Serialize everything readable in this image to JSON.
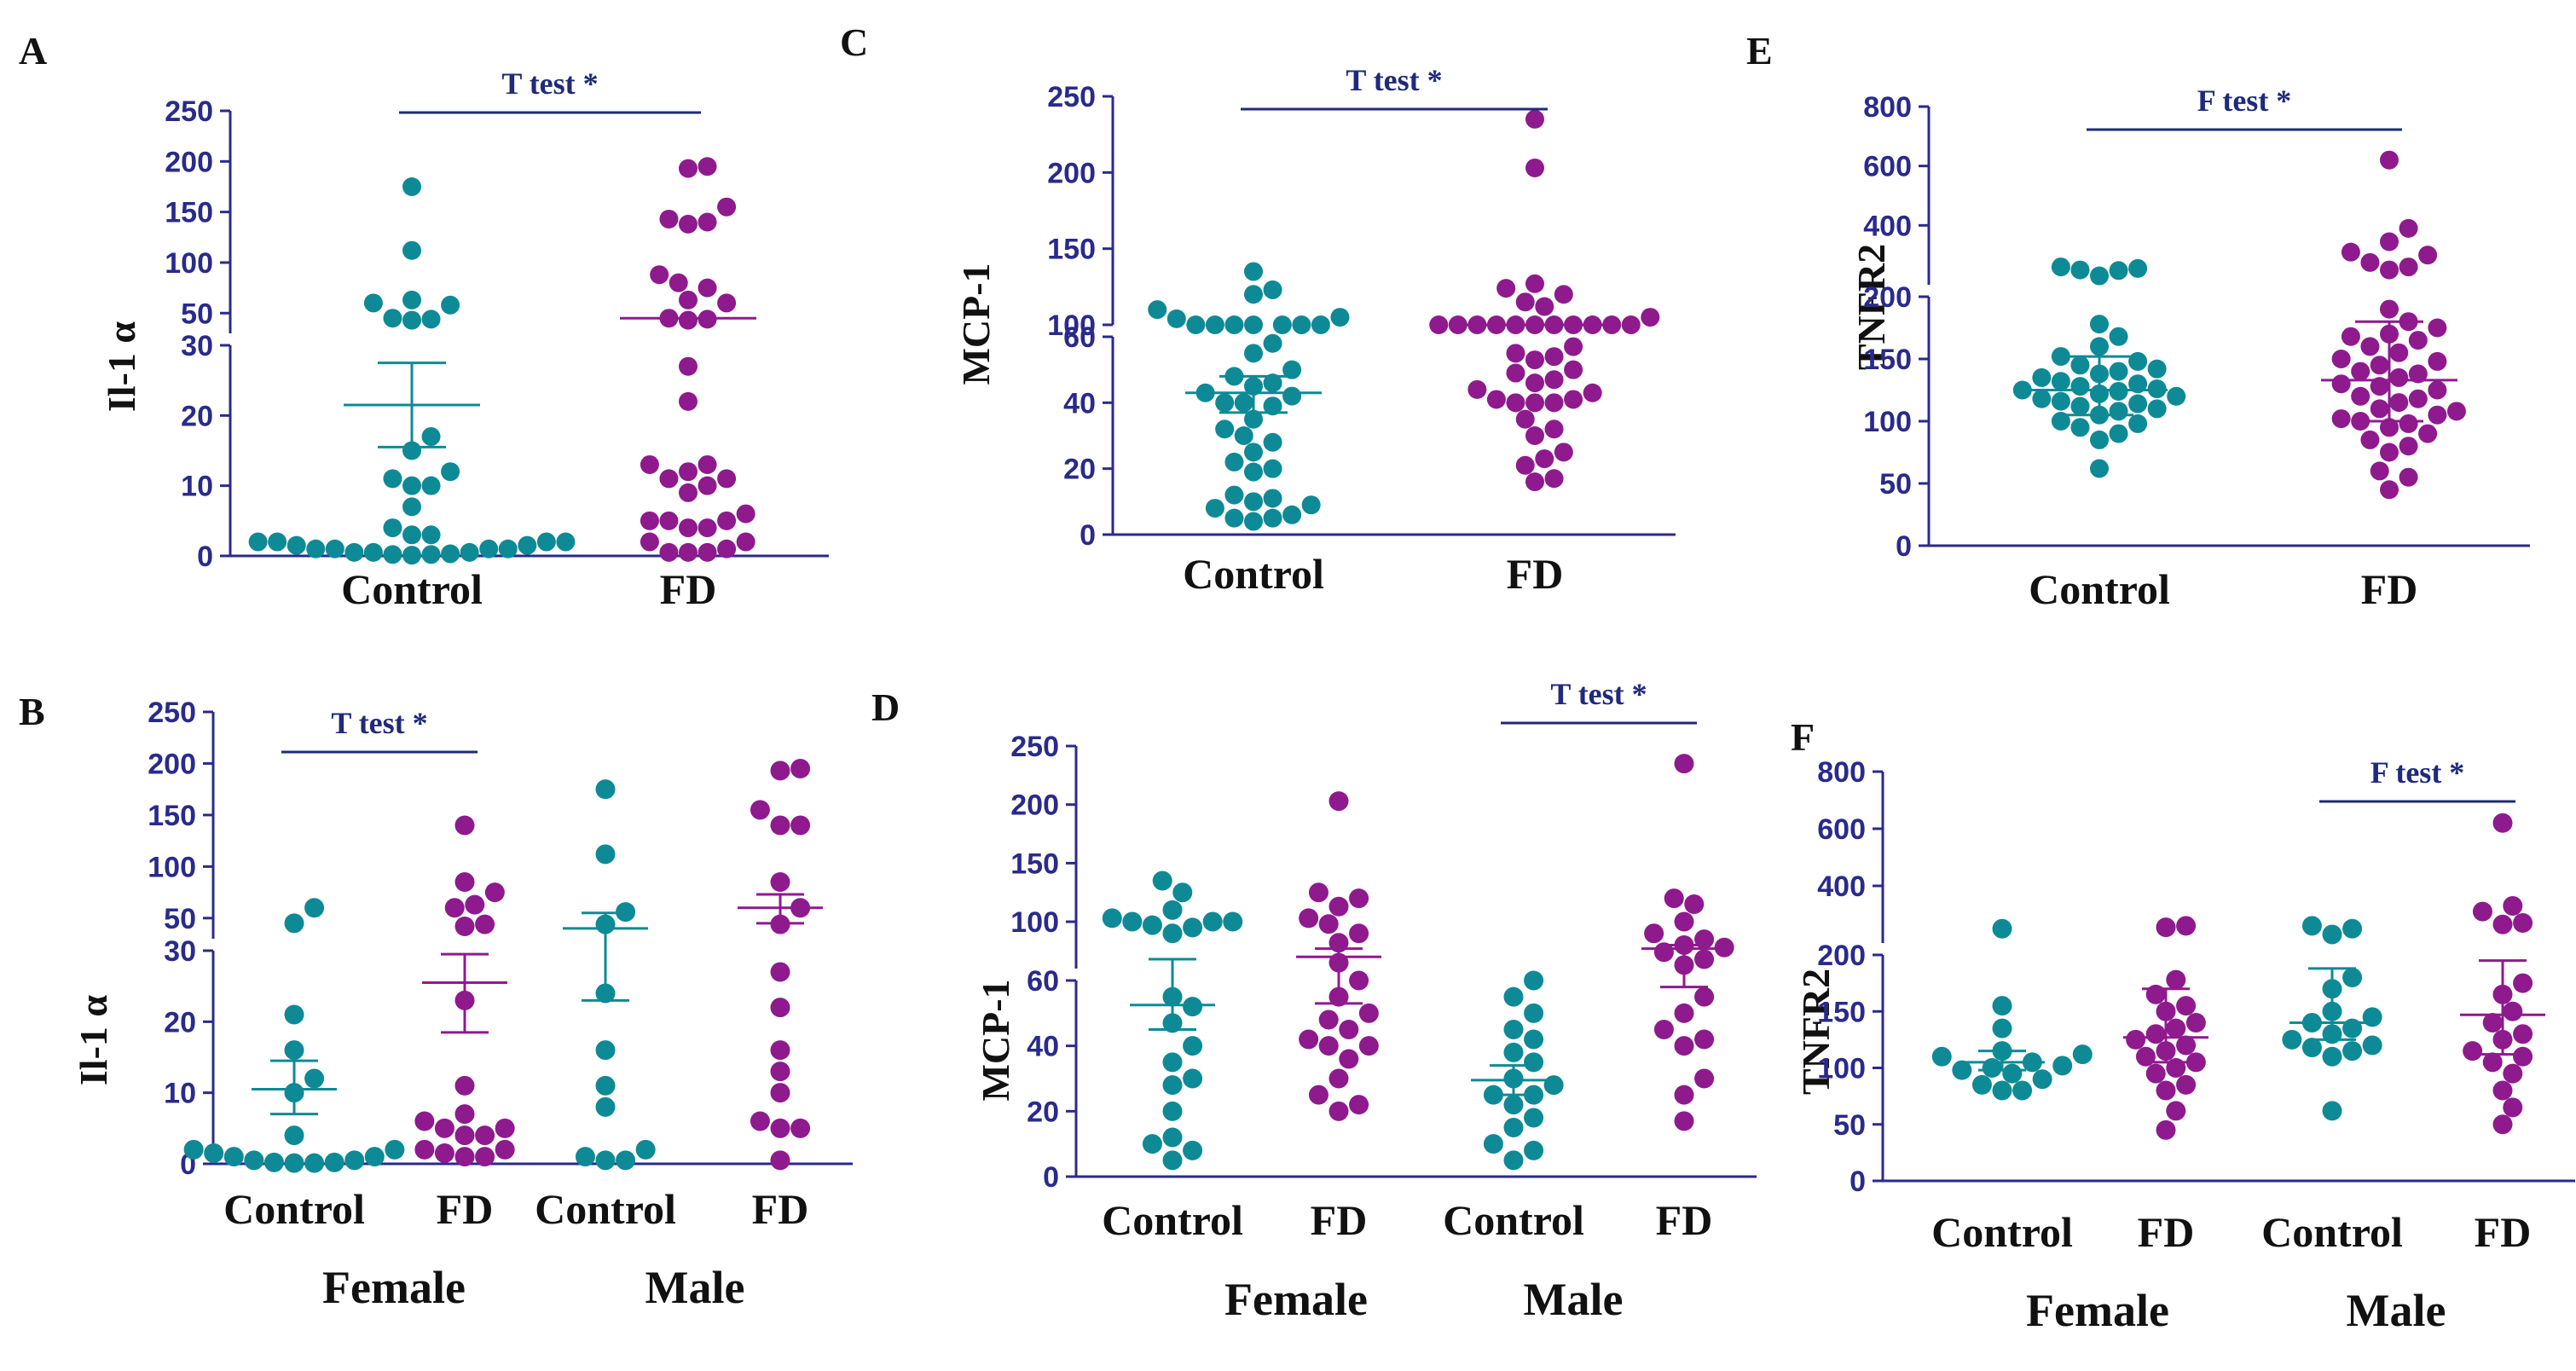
{
  "colors": {
    "control": "#0e8a96",
    "fd": "#8e1a8e",
    "axis": "#2a2a8c",
    "test_line": "#1f2a7a"
  },
  "chart_data": [
    {
      "panel": "A",
      "type": "scatter",
      "ylabel": "Il-1 α",
      "yscale": "broken",
      "lower_max": 30,
      "upper_min": 30,
      "upper_max": 250,
      "lower_ticks": [
        0,
        10,
        20,
        30
      ],
      "upper_ticks": [
        50,
        100,
        150,
        200,
        250
      ],
      "categories": [
        "Control",
        "FD"
      ],
      "groups": [
        {
          "label": "Control",
          "color": "control",
          "values": [
            175,
            112,
            63,
            60,
            58,
            45,
            44,
            43,
            17,
            15,
            12,
            11,
            10,
            10,
            7,
            4,
            3,
            3,
            2,
            2,
            2,
            2,
            1.5,
            1.5,
            1,
            1,
            1,
            1,
            0.5,
            0.5,
            0.5,
            0.3,
            0.2,
            0.2,
            0.1
          ],
          "mean": 21.5,
          "err_lo": 15.5,
          "err_hi": 27.5
        },
        {
          "label": "FD",
          "color": "fd",
          "values": [
            195,
            193,
            155,
            143,
            140,
            138,
            88,
            80,
            75,
            63,
            60,
            45,
            44,
            43,
            27,
            22,
            13,
            13,
            12,
            11,
            11,
            10,
            9,
            6,
            5,
            5,
            5,
            4,
            4,
            2,
            2,
            1,
            0.5,
            0.5,
            0.5
          ],
          "mean": 45,
          "err_lo": 45,
          "err_hi": 45
        }
      ],
      "test": {
        "label": "T test *",
        "from": 0,
        "to": 1
      }
    },
    {
      "panel": "B",
      "type": "scatter",
      "ylabel": "Il-1 α",
      "yscale": "broken",
      "lower_max": 30,
      "upper_min": 30,
      "upper_max": 250,
      "lower_ticks": [
        0,
        10,
        20,
        30
      ],
      "upper_ticks": [
        50,
        100,
        150,
        200,
        250
      ],
      "categories": [
        "Control",
        "FD",
        "Control",
        "FD"
      ],
      "group_labels": [
        "Female",
        "Male"
      ],
      "groups": [
        {
          "label": "Control",
          "color": "control",
          "values": [
            60,
            45,
            21,
            16,
            12,
            10,
            4,
            2,
            2,
            1.5,
            1,
            1,
            0.5,
            0.5,
            0.2,
            0.2,
            0.1,
            0.1
          ],
          "mean": 10.5,
          "err_lo": 7,
          "err_hi": 14.5
        },
        {
          "label": "FD",
          "color": "fd",
          "values": [
            140,
            85,
            75,
            63,
            60,
            44,
            42,
            23,
            11,
            7,
            6,
            5,
            5,
            4,
            4,
            2,
            2,
            1.5,
            1,
            1
          ],
          "mean": 25.5,
          "err_lo": 18.5,
          "err_hi": 29.5
        },
        {
          "label": "Control",
          "color": "control",
          "values": [
            175,
            112,
            56,
            44,
            24,
            16,
            11,
            8,
            2,
            1,
            0.5,
            0.5
          ],
          "mean": 40,
          "err_lo": 23,
          "err_hi": 55
        },
        {
          "label": "FD",
          "color": "fd",
          "values": [
            195,
            193,
            155,
            140,
            140,
            85,
            60,
            44,
            27,
            22,
            16,
            13,
            10,
            6,
            5,
            5,
            0.5
          ],
          "mean": 60,
          "err_lo": 45,
          "err_hi": 73
        }
      ],
      "test": {
        "label": "T test *",
        "from": 0,
        "to": 1
      }
    },
    {
      "panel": "C",
      "type": "scatter",
      "ylabel": "MCP-1",
      "yscale": "broken",
      "lower_max": 60,
      "upper_min": 100,
      "upper_max": 250,
      "lower_ticks": [
        0,
        20,
        40,
        60
      ],
      "upper_ticks": [
        100,
        150,
        200,
        250
      ],
      "categories": [
        "Control",
        "FD"
      ],
      "groups": [
        {
          "label": "Control",
          "color": "control",
          "values": [
            135,
            123,
            120,
            110,
            105,
            104,
            100,
            98,
            96,
            92,
            85,
            78,
            72,
            58,
            55,
            50,
            48,
            46,
            45,
            43,
            42,
            40,
            40,
            39,
            35,
            32,
            30,
            28,
            25,
            22,
            20,
            19,
            12,
            11,
            10,
            9,
            8,
            6,
            5,
            5,
            4
          ],
          "mean": 43,
          "err_lo": 37,
          "err_hi": 48
        },
        {
          "label": "FD",
          "color": "fd",
          "values": [
            235,
            203,
            127,
            124,
            120,
            115,
            112,
            105,
            100,
            95,
            90,
            87,
            85,
            80,
            75,
            70,
            66,
            64,
            62,
            57,
            55,
            54,
            53,
            50,
            49,
            47,
            46,
            44,
            43,
            41,
            41,
            40,
            40,
            40,
            35,
            32,
            30,
            25,
            23,
            21,
            17,
            16
          ],
          "mean": 67,
          "err_lo": 67,
          "err_hi": 67
        }
      ],
      "test": {
        "label": "T test *",
        "from": 0,
        "to": 1
      }
    },
    {
      "panel": "D",
      "type": "scatter",
      "ylabel": "MCP-1",
      "yscale": "broken",
      "lower_max": 60,
      "upper_min": 60,
      "upper_max": 250,
      "lower_ticks": [
        0,
        20,
        40,
        60
      ],
      "upper_ticks": [
        100,
        150,
        200,
        250
      ],
      "categories": [
        "Control",
        "FD",
        "Control",
        "FD"
      ],
      "group_labels": [
        "Female",
        "Male"
      ],
      "groups": [
        {
          "label": "Control",
          "color": "control",
          "values": [
            135,
            125,
            110,
            103,
            100,
            100,
            100,
            97,
            95,
            90,
            55,
            52,
            47,
            40,
            35,
            30,
            28,
            20,
            12,
            10,
            8,
            5
          ],
          "mean": 52.5,
          "err_lo": 45,
          "err_hi": 68
        },
        {
          "label": "FD",
          "color": "fd",
          "values": [
            203,
            125,
            120,
            113,
            103,
            98,
            90,
            82,
            65,
            60,
            55,
            50,
            48,
            45,
            42,
            40,
            40,
            36,
            30,
            25,
            22,
            20
          ],
          "mean": 70,
          "err_lo": 53,
          "err_hi": 77
        },
        {
          "label": "Control",
          "color": "control",
          "values": [
            60,
            55,
            50,
            45,
            42,
            38,
            35,
            30,
            28,
            25,
            25,
            22,
            18,
            15,
            10,
            8,
            5
          ],
          "mean": 29.5,
          "err_lo": 25,
          "err_hi": 34
        },
        {
          "label": "FD",
          "color": "fd",
          "values": [
            235,
            120,
            115,
            100,
            90,
            85,
            80,
            78,
            74,
            68,
            63,
            55,
            50,
            45,
            42,
            40,
            30,
            25,
            17
          ],
          "mean": 77,
          "err_lo": 58,
          "err_hi": 80
        }
      ],
      "test": {
        "label": "T test *",
        "from": 2,
        "to": 3
      }
    },
    {
      "panel": "E",
      "type": "scatter",
      "ylabel": "TNFR2",
      "yscale": "broken",
      "lower_max": 200,
      "upper_min": 200,
      "upper_max": 800,
      "lower_ticks": [
        0,
        50,
        100,
        150,
        200
      ],
      "upper_ticks": [
        200,
        400,
        600,
        800
      ],
      "upper_tick_labels": [
        "",
        "400",
        "600",
        "800"
      ],
      "categories": [
        "Control",
        "FD"
      ],
      "groups": [
        {
          "label": "Control",
          "color": "control",
          "values": [
            260,
            255,
            250,
            248,
            230,
            178,
            168,
            160,
            152,
            148,
            145,
            142,
            140,
            138,
            135,
            132,
            130,
            128,
            126,
            125,
            124,
            122,
            120,
            118,
            116,
            114,
            112,
            110,
            108,
            105,
            100,
            98,
            95,
            90,
            85,
            62
          ],
          "mean": 125,
          "err_lo": 105,
          "err_hi": 152
        },
        {
          "label": "FD",
          "color": "fd",
          "values": [
            620,
            390,
            345,
            310,
            300,
            275,
            260,
            250,
            190,
            180,
            175,
            170,
            168,
            165,
            160,
            155,
            150,
            148,
            145,
            140,
            138,
            135,
            130,
            128,
            125,
            120,
            118,
            115,
            110,
            108,
            105,
            102,
            100,
            98,
            95,
            90,
            85,
            80,
            75,
            60,
            55,
            45
          ],
          "mean": 133,
          "err_lo": 100,
          "err_hi": 180
        }
      ],
      "test": {
        "label": "F test *",
        "from": 0,
        "to": 1
      }
    },
    {
      "panel": "F",
      "type": "scatter",
      "ylabel": "TNFR2",
      "yscale": "broken",
      "lower_max": 200,
      "upper_min": 200,
      "upper_max": 800,
      "lower_ticks": [
        0,
        50,
        100,
        150,
        200
      ],
      "upper_ticks": [
        200,
        400,
        600,
        800
      ],
      "upper_tick_labels": [
        "",
        "400",
        "600",
        "800"
      ],
      "categories": [
        "Control",
        "FD",
        "Control",
        "FD"
      ],
      "group_labels": [
        "Female",
        "Male"
      ],
      "groups": [
        {
          "label": "Control",
          "color": "control",
          "values": [
            250,
            155,
            135,
            115,
            112,
            110,
            105,
            102,
            100,
            98,
            95,
            90,
            85,
            80,
            80
          ],
          "mean": 105,
          "err_lo": 98,
          "err_hi": 115
        },
        {
          "label": "FD",
          "color": "fd",
          "values": [
            260,
            255,
            178,
            165,
            155,
            150,
            140,
            135,
            130,
            125,
            120,
            115,
            110,
            105,
            100,
            95,
            85,
            80,
            62,
            45
          ],
          "mean": 127,
          "err_lo": 105,
          "err_hi": 170
        },
        {
          "label": "Control",
          "color": "control",
          "values": [
            260,
            250,
            230,
            180,
            170,
            150,
            145,
            140,
            135,
            130,
            125,
            120,
            118,
            115,
            110,
            62
          ],
          "mean": 140,
          "err_lo": 125,
          "err_hi": 188
        },
        {
          "label": "FD",
          "color": "fd",
          "values": [
            620,
            330,
            310,
            270,
            265,
            175,
            165,
            150,
            140,
            130,
            125,
            115,
            110,
            105,
            95,
            80,
            65,
            50
          ],
          "mean": 147,
          "err_lo": 112,
          "err_hi": 195
        }
      ],
      "test": {
        "label": "F test *",
        "from": 2,
        "to": 3
      }
    }
  ]
}
